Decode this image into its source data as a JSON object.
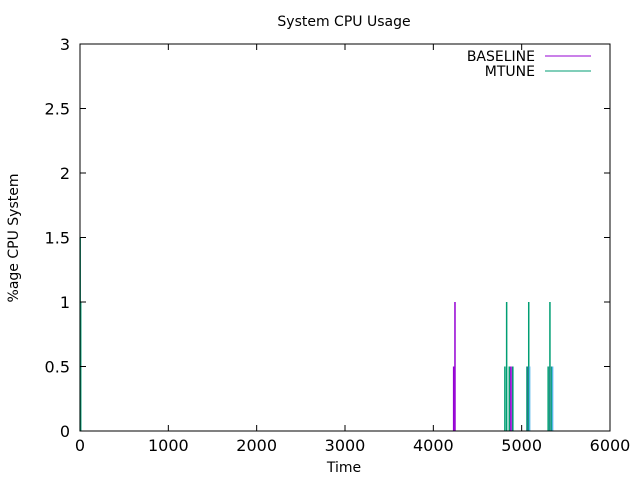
{
  "chart_data": {
    "type": "line",
    "title": "System CPU Usage",
    "xlabel": "Time",
    "ylabel": "%age CPU System",
    "xlim": [
      0,
      6000
    ],
    "ylim": [
      0,
      3
    ],
    "x_ticks": [
      0,
      1000,
      2000,
      3000,
      4000,
      5000,
      6000
    ],
    "y_ticks": [
      0,
      0.5,
      1,
      1.5,
      2,
      2.5,
      3
    ],
    "y_tick_labels": [
      "0",
      "0.5",
      "1",
      "1.5",
      "2",
      "2.5",
      "3"
    ],
    "grid": false,
    "legend_position": "top-right",
    "series": [
      {
        "name": "BASELINE",
        "color": "#9400d3",
        "spikes": [
          [
            4230,
            0.5
          ],
          [
            4245,
            1
          ],
          [
            4870,
            0.5
          ],
          [
            4890,
            0.5
          ],
          [
            5070,
            0.5
          ],
          [
            5320,
            0.5
          ]
        ]
      },
      {
        "name": "MTUNE",
        "color": "#009e73",
        "spikes": [
          [
            2,
            1.5
          ],
          [
            8,
            1
          ],
          [
            4810,
            0.5
          ],
          [
            4830,
            1
          ],
          [
            4860,
            0.5
          ],
          [
            4900,
            0.5
          ],
          [
            5060,
            0.5
          ],
          [
            5080,
            1
          ],
          [
            5300,
            0.5
          ],
          [
            5320,
            1
          ],
          [
            5340,
            0.5
          ]
        ]
      },
      {
        "name": "",
        "color": "#56b4e9",
        "spikes": [
          [
            5090,
            0.5
          ],
          [
            5350,
            0.5
          ]
        ]
      }
    ]
  }
}
